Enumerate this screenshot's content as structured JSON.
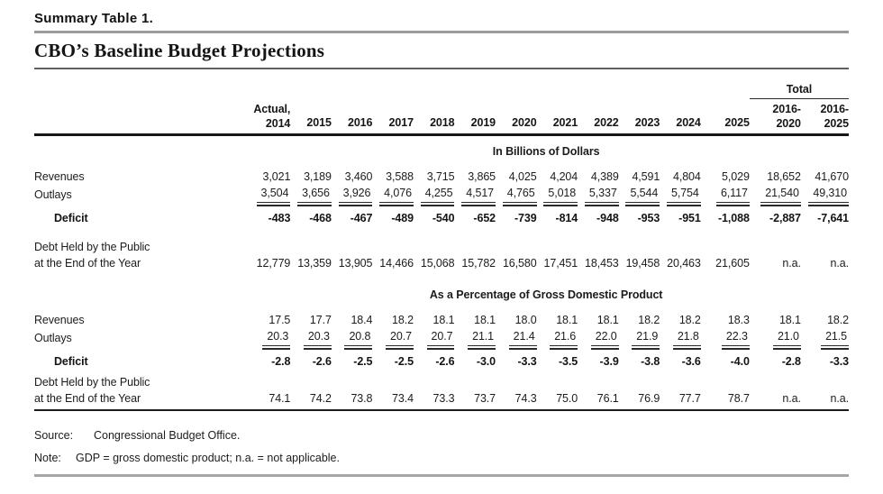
{
  "header": {
    "table_number": "Summary Table 1.",
    "title": "CBO’s Baseline Budget Projections"
  },
  "columns": {
    "actual": {
      "line1": "Actual,",
      "line2": "2014"
    },
    "years": [
      "2015",
      "2016",
      "2017",
      "2018",
      "2019",
      "2020",
      "2021",
      "2022",
      "2023",
      "2024",
      "2025"
    ],
    "total_group": {
      "label": "Total",
      "cols": [
        {
          "line1": "2016-",
          "line2": "2020"
        },
        {
          "line1": "2016-",
          "line2": "2025"
        }
      ]
    }
  },
  "sections": [
    {
      "heading": "In Billions of Dollars",
      "rows": [
        {
          "label": "Revenues",
          "style": "plain",
          "values": [
            "3,021",
            "3,189",
            "3,460",
            "3,588",
            "3,715",
            "3,865",
            "4,025",
            "4,204",
            "4,389",
            "4,591",
            "4,804",
            "5,029",
            "18,652",
            "41,670"
          ]
        },
        {
          "label": "Outlays",
          "style": "double-underline",
          "values": [
            "3,504",
            "3,656",
            "3,926",
            "4,076",
            "4,255",
            "4,517",
            "4,765",
            "5,018",
            "5,337",
            "5,544",
            "5,754",
            "6,117",
            "21,540",
            "49,310"
          ]
        },
        {
          "label": "Deficit",
          "style": "total",
          "values": [
            "-483",
            "-468",
            "-467",
            "-489",
            "-540",
            "-652",
            "-739",
            "-814",
            "-948",
            "-953",
            "-951",
            "-1,088",
            "-2,887",
            "-7,641"
          ]
        },
        {
          "label": [
            "Debt Held by the Public",
            "at the End of the Year"
          ],
          "style": "two-line",
          "values": [
            "12,779",
            "13,359",
            "13,905",
            "14,466",
            "15,068",
            "15,782",
            "16,580",
            "17,451",
            "18,453",
            "19,458",
            "20,463",
            "21,605",
            "n.a.",
            "n.a."
          ]
        }
      ]
    },
    {
      "heading": "As a Percentage of Gross Domestic Product",
      "rows": [
        {
          "label": "Revenues",
          "style": "plain",
          "values": [
            "17.5",
            "17.7",
            "18.4",
            "18.2",
            "18.1",
            "18.1",
            "18.0",
            "18.1",
            "18.1",
            "18.2",
            "18.2",
            "18.3",
            "18.1",
            "18.2"
          ]
        },
        {
          "label": "Outlays",
          "style": "double-underline",
          "values": [
            "20.3",
            "20.3",
            "20.8",
            "20.7",
            "20.7",
            "21.1",
            "21.4",
            "21.6",
            "22.0",
            "21.9",
            "21.8",
            "22.3",
            "21.0",
            "21.5"
          ]
        },
        {
          "label": "Deficit",
          "style": "total",
          "values": [
            "-2.8",
            "-2.6",
            "-2.5",
            "-2.5",
            "-2.6",
            "-3.0",
            "-3.3",
            "-3.5",
            "-3.9",
            "-3.8",
            "-3.6",
            "-4.0",
            "-2.8",
            "-3.3"
          ]
        },
        {
          "label": [
            "Debt Held by the Public",
            "at the End of the Year"
          ],
          "style": "two-line",
          "values": [
            "74.1",
            "74.2",
            "73.8",
            "73.4",
            "73.3",
            "73.7",
            "74.3",
            "75.0",
            "76.1",
            "76.9",
            "77.7",
            "78.7",
            "n.a.",
            "n.a."
          ]
        }
      ]
    }
  ],
  "footer": {
    "source_label": "Source:",
    "source_text": "Congressional Budget Office.",
    "note_label": "Note:",
    "note_text": "GDP = gross domestic product; n.a. = not applicable."
  }
}
